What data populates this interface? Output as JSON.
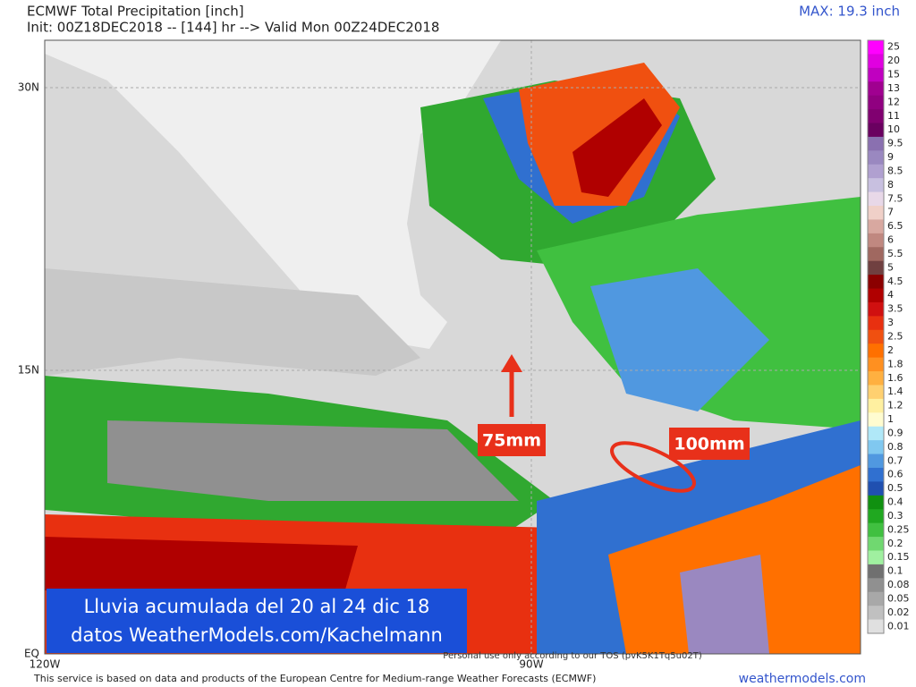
{
  "header": {
    "title": "ECMWF Total Precipitation [inch]",
    "init": "Init: 00Z18DEC2018 -- [144] hr --> Valid Mon 00Z24DEC2018",
    "max": "MAX: 19.3 inch"
  },
  "map": {
    "lat_labels": [
      "30N",
      "15N",
      "EQ"
    ],
    "lon_labels": [
      "120W",
      "90W"
    ],
    "annotations": [
      "75mm",
      "100mm"
    ],
    "banner": [
      "Lluvia acumulada del 20 al 24 dic 18",
      "datos WeatherModels.com/Kachelmann"
    ],
    "watermark": "Personal use only according to our TOS (pvK5K1Tq5u02T)"
  },
  "colorbar": [
    {
      "label": "25",
      "color": "#ff00ff"
    },
    {
      "label": "20",
      "color": "#e000e0"
    },
    {
      "label": "15",
      "color": "#c000c0"
    },
    {
      "label": "13",
      "color": "#a00090"
    },
    {
      "label": "12",
      "color": "#900080"
    },
    {
      "label": "11",
      "color": "#800070"
    },
    {
      "label": "10",
      "color": "#6a0060"
    },
    {
      "label": "9.5",
      "color": "#8a70b0"
    },
    {
      "label": "9",
      "color": "#9a88c0"
    },
    {
      "label": "8.5",
      "color": "#b0a0d0"
    },
    {
      "label": "8",
      "color": "#c8c0e0"
    },
    {
      "label": "7.5",
      "color": "#e8d8e8"
    },
    {
      "label": "7",
      "color": "#f0d0c8"
    },
    {
      "label": "6.5",
      "color": "#d8a8a0"
    },
    {
      "label": "6",
      "color": "#c08880"
    },
    {
      "label": "5.5",
      "color": "#a06860"
    },
    {
      "label": "5",
      "color": "#704040"
    },
    {
      "label": "4.5",
      "color": "#8b0000"
    },
    {
      "label": "4",
      "color": "#b00000"
    },
    {
      "label": "3.5",
      "color": "#d01010"
    },
    {
      "label": "3",
      "color": "#e83010"
    },
    {
      "label": "2.5",
      "color": "#f05010"
    },
    {
      "label": "2",
      "color": "#ff7000"
    },
    {
      "label": "1.8",
      "color": "#ff9020"
    },
    {
      "label": "1.6",
      "color": "#ffb040"
    },
    {
      "label": "1.4",
      "color": "#ffd070"
    },
    {
      "label": "1.2",
      "color": "#fff0a0"
    },
    {
      "label": "1",
      "color": "#fffcd0"
    },
    {
      "label": "0.9",
      "color": "#b0e8f8"
    },
    {
      "label": "0.8",
      "color": "#80c8f0"
    },
    {
      "label": "0.7",
      "color": "#5098e0"
    },
    {
      "label": "0.6",
      "color": "#3070d0"
    },
    {
      "label": "0.5",
      "color": "#2050b0"
    },
    {
      "label": "0.4",
      "color": "#109010"
    },
    {
      "label": "0.3",
      "color": "#20a820"
    },
    {
      "label": "0.25",
      "color": "#40c040"
    },
    {
      "label": "0.2",
      "color": "#70d870"
    },
    {
      "label": "0.15",
      "color": "#a0f0a0"
    },
    {
      "label": "0.1",
      "color": "#707070"
    },
    {
      "label": "0.08",
      "color": "#909090"
    },
    {
      "label": "0.05",
      "color": "#a8a8a8"
    },
    {
      "label": "0.02",
      "color": "#c0c0c0"
    },
    {
      "label": "0.01",
      "color": "#e0e0e0"
    }
  ],
  "footer": {
    "credit": "This service is based on data and products of the European Centre for Medium-range Weather Forecasts (ECMWF)",
    "site": "weathermodels.com"
  }
}
